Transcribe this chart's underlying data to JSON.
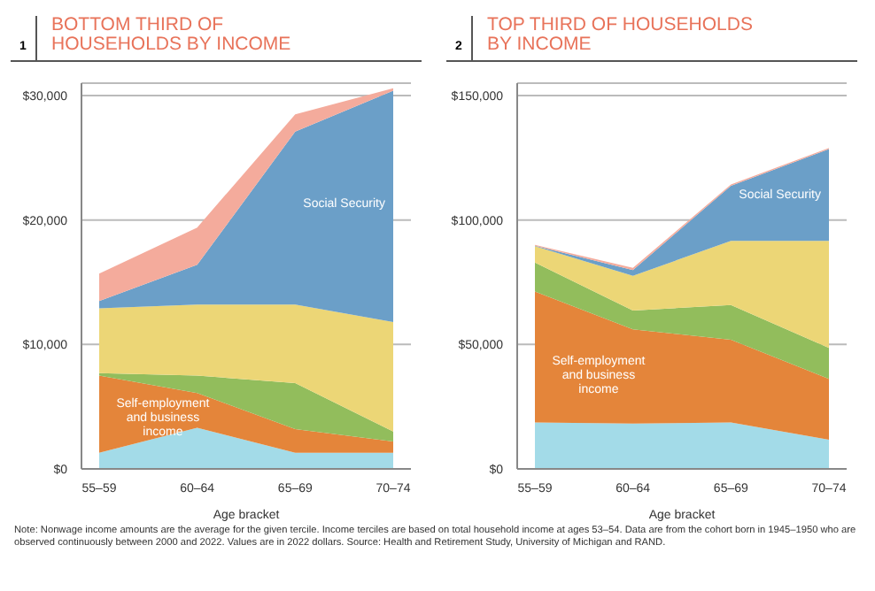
{
  "chart_data": [
    {
      "type": "area",
      "stacked": true,
      "title": "BOTTOM THIRD OF HOUSEHOLDS BY INCOME",
      "xlabel": "Age bracket",
      "categories": [
        "55–59",
        "60–64",
        "65–69",
        "70–74"
      ],
      "ylim": [
        0,
        31000
      ],
      "yticks": [
        {
          "value": 0,
          "label": "$0"
        },
        {
          "value": 10000,
          "label": "$10,000"
        },
        {
          "value": 20000,
          "label": "$20,000"
        },
        {
          "value": 30000,
          "label": "$30,000"
        }
      ],
      "grid": "y",
      "legend": false,
      "annotations": [
        "1"
      ],
      "series": [
        {
          "color": "#a3dbe8",
          "values": [
            1300,
            3300,
            1300,
            1300
          ]
        },
        {
          "name": "Self-employment and business income",
          "color": "#e4853a",
          "values": [
            6200,
            2800,
            1900,
            900
          ]
        },
        {
          "color": "#92bd5c",
          "values": [
            200,
            1400,
            3700,
            800
          ]
        },
        {
          "color": "#ecd676",
          "values": [
            5200,
            5700,
            6300,
            8800
          ]
        },
        {
          "name": "Social Security",
          "color": "#6b9fc8",
          "values": [
            600,
            3200,
            13900,
            18600
          ]
        },
        {
          "color": "#f4ab9c",
          "values": [
            2200,
            3000,
            1400,
            200
          ]
        }
      ]
    },
    {
      "type": "area",
      "stacked": true,
      "title": "TOP THIRD OF HOUSEHOLDS BY INCOME",
      "xlabel": "Age bracket",
      "categories": [
        "55–59",
        "60–64",
        "65–69",
        "70–74"
      ],
      "ylim": [
        0,
        155000
      ],
      "yticks": [
        {
          "value": 0,
          "label": "$0"
        },
        {
          "value": 50000,
          "label": "$50,000"
        },
        {
          "value": 100000,
          "label": "$100,000"
        },
        {
          "value": 150000,
          "label": "$150,000"
        }
      ],
      "grid": "y",
      "legend": false,
      "annotations": [
        "2",
        "Note: Nonwage income amounts are the average for the given tercile. Income terciles are based on total household income at ages 53–54. Data are from the cohort born in 1945–1950 who are observed continuously between 2000 and 2022. Values are in 2022 dollars. Source: Health and Retirement Study, University of Michigan and RAND."
      ],
      "series": [
        {
          "color": "#a3dbe8",
          "values": [
            18700,
            18200,
            18700,
            11700
          ]
        },
        {
          "name": "Self-employment and business income",
          "color": "#e4853a",
          "values": [
            52600,
            37900,
            33200,
            24500
          ]
        },
        {
          "color": "#92bd5c",
          "values": [
            11600,
            7500,
            14000,
            12400
          ]
        },
        {
          "color": "#ecd676",
          "values": [
            6600,
            14000,
            25700,
            43000
          ]
        },
        {
          "name": "Social Security",
          "color": "#6b9fc8",
          "values": [
            200,
            2300,
            22200,
            36900
          ]
        },
        {
          "color": "#f4ab9c",
          "values": [
            300,
            900,
            500,
            500
          ]
        }
      ]
    }
  ]
}
